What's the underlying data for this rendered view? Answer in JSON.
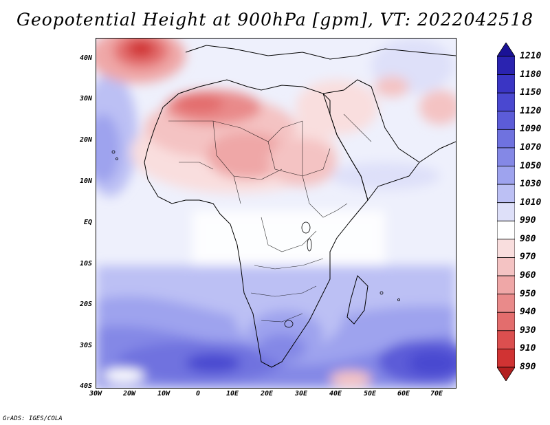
{
  "title": "Geopotential Height at 900hPa [gpm], VT: 2022042518",
  "credit": "GrADS: IGES/COLA",
  "map": {
    "lat_labels": [
      "40N",
      "30N",
      "20N",
      "10N",
      "EQ",
      "10S",
      "20S",
      "30S",
      "40S"
    ],
    "lon_labels": [
      "30W",
      "20W",
      "10W",
      "0",
      "10E",
      "20E",
      "30E",
      "40E",
      "50E",
      "60E",
      "70E"
    ]
  },
  "colorbar": {
    "levels": [
      "1210",
      "1180",
      "1150",
      "1120",
      "1090",
      "1070",
      "1050",
      "1030",
      "1010",
      "990",
      "980",
      "970",
      "960",
      "950",
      "940",
      "930",
      "910",
      "890"
    ],
    "colors": [
      "#1a1296",
      "#2a23b0",
      "#3a35c4",
      "#4a48d0",
      "#5c5cd8",
      "#6f72df",
      "#8488e6",
      "#9ea3ee",
      "#bcc0f4",
      "#dee0f9",
      "#ffffff",
      "#f9dede",
      "#f4c3c3",
      "#efa7a7",
      "#e98a8a",
      "#e36d6d",
      "#db4f4f",
      "#d03333",
      "#b32020"
    ]
  },
  "legend_colors": {
    "low": "#b32020",
    "high": "#1a1296",
    "neutral": "#ffffff"
  }
}
